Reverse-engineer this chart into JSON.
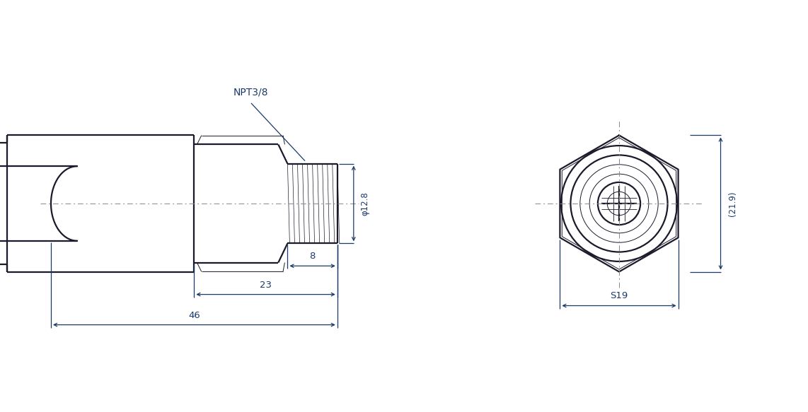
{
  "bg_color": "#ffffff",
  "line_color": "#1a1a2a",
  "dim_color": "#1a3a6a",
  "centerline_color": "#888888",
  "figsize": [
    11.42,
    5.83
  ],
  "dpi": 100,
  "labels": {
    "NPT38": "NPT3/8",
    "dim_12_8": "φ12.8",
    "dim_8": "8",
    "dim_23": "23",
    "dim_46": "46",
    "dim_219": "(21.9)",
    "dim_S19": "S19"
  }
}
